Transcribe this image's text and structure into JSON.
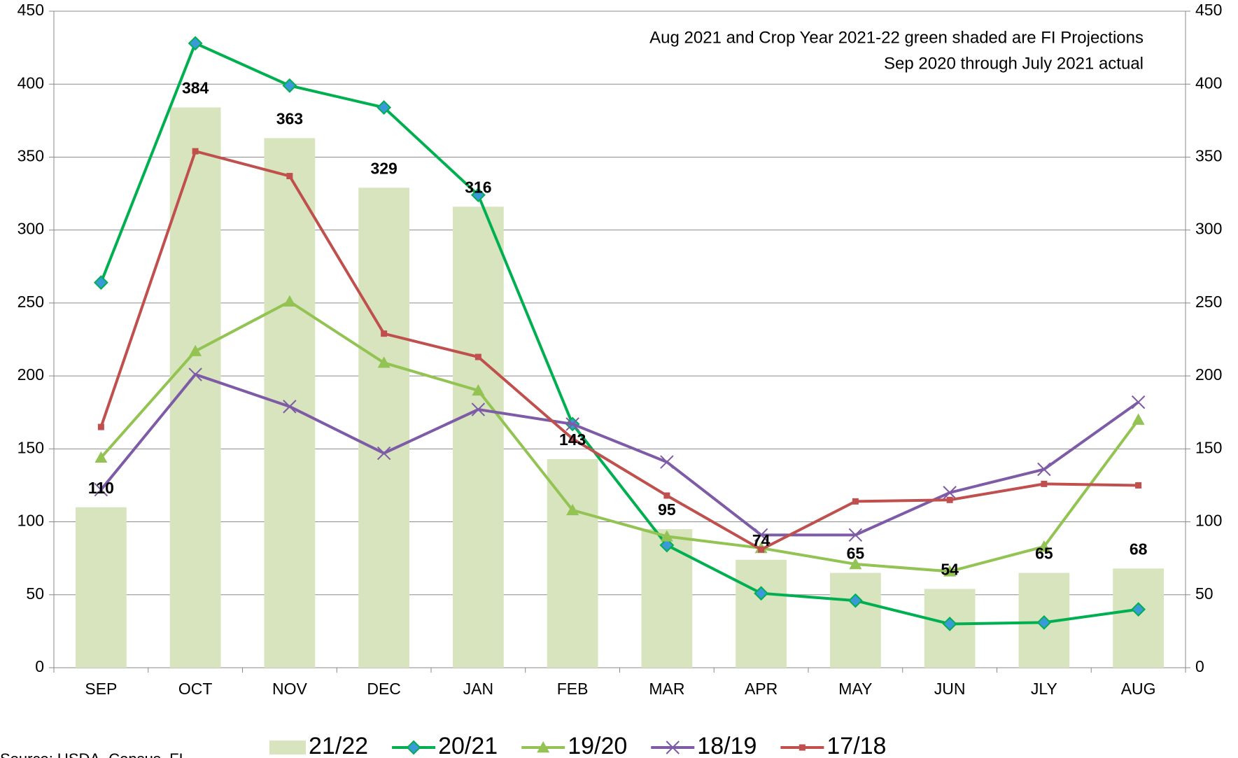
{
  "chart_data": {
    "type": "bar_line",
    "annotations": [
      "Aug 2021 and Crop Year 2021-22 green shaded are FI Projections",
      "Sep 2020 through July 2021 actual"
    ],
    "source": "Source: USDA, Census, FI",
    "categories": [
      "SEP",
      "OCT",
      "NOV",
      "DEC",
      "JAN",
      "FEB",
      "MAR",
      "APR",
      "MAY",
      "JUN",
      "JLY",
      "AUG"
    ],
    "series": [
      {
        "name": "21/22",
        "type": "bar",
        "color": "#d7e4bd",
        "values": [
          110,
          384,
          363,
          329,
          316,
          143,
          95,
          74,
          65,
          54,
          65,
          68
        ]
      },
      {
        "name": "20/21",
        "type": "line",
        "marker": "diamond",
        "color": "#00b050",
        "values": [
          264,
          428,
          399,
          384,
          324,
          167,
          84,
          51,
          46,
          30,
          31,
          40
        ]
      },
      {
        "name": "19/20",
        "type": "line",
        "marker": "triangle",
        "color": "#92c353",
        "values": [
          144,
          217,
          251,
          209,
          190,
          108,
          90,
          82,
          71,
          66,
          83,
          170
        ]
      },
      {
        "name": "18/19",
        "type": "line",
        "marker": "x",
        "color": "#7e5ba6",
        "values": [
          122,
          201,
          179,
          147,
          177,
          167,
          141,
          91,
          91,
          120,
          136,
          182
        ]
      },
      {
        "name": "17/18",
        "type": "line",
        "marker": "square",
        "color": "#c0504d",
        "values": [
          165,
          354,
          337,
          229,
          213,
          157,
          118,
          81,
          114,
          115,
          126,
          125
        ]
      }
    ],
    "ylim": [
      0,
      450
    ],
    "yticks": [
      0,
      50,
      100,
      150,
      200,
      250,
      300,
      350,
      400,
      450
    ],
    "y2lim": [
      0,
      450
    ],
    "y2ticks": [
      0,
      50,
      100,
      150,
      200,
      250,
      300,
      350,
      400,
      450
    ],
    "grid": true
  }
}
